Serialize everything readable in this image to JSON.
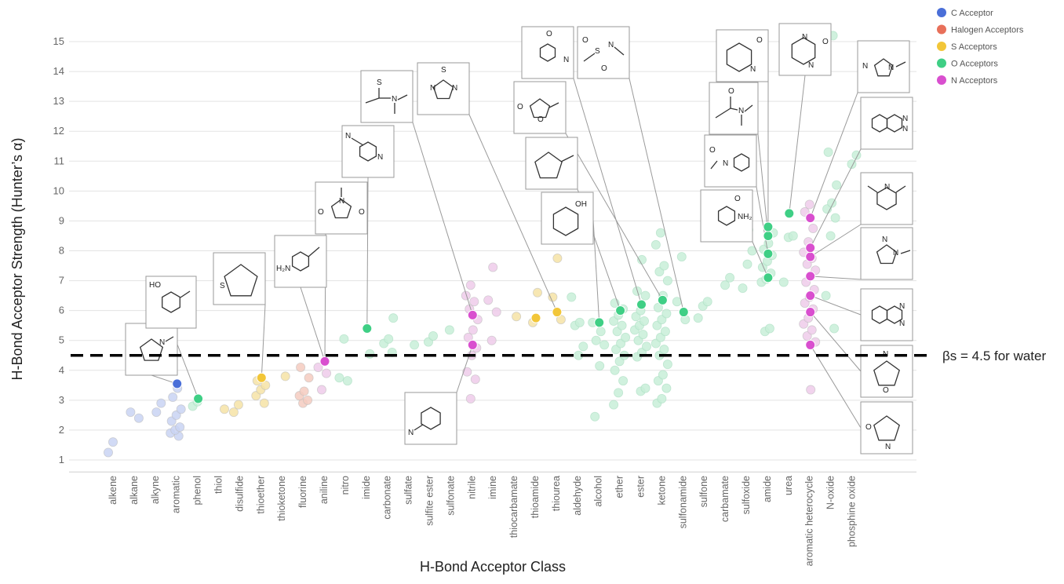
{
  "chart_data": {
    "type": "scatter",
    "title": "",
    "xlabel": "H-Bond Acceptor Class",
    "ylabel": "H-Bond Acceptor Strength (Hunter’s α)",
    "ylim": [
      0.6,
      15.6
    ],
    "yticks": [
      1,
      2,
      3,
      4,
      5,
      6,
      7,
      8,
      9,
      10,
      11,
      12,
      13,
      14,
      15
    ],
    "grid": "horizontal",
    "legend_position": "top-right",
    "categories": [
      "alkene",
      "alkane",
      "alkyne",
      "aromatic",
      "phenol",
      "thiol",
      "disulfide",
      "thioether",
      "thioketone",
      "fluorine",
      "aniline",
      "nitro",
      "imide",
      "carbonate",
      "sulfate",
      "sulfite ester",
      "sulfonate",
      "nitrile",
      "imine",
      "thiocarbamate",
      "thioamide",
      "thiourea",
      "aldehyde",
      "alcohol",
      "ether",
      "ester",
      "ketone",
      "sulfonamide",
      "sulfone",
      "carbamate",
      "sulfoxide",
      "amide",
      "urea",
      "aromatic heterocycle",
      "N-oxide",
      "phosphine oxide"
    ],
    "reference_line": {
      "y": 4.5,
      "label": "βs = 4.5 for water"
    },
    "series": [
      {
        "name": "C Acceptor",
        "color": "#4a6fd8",
        "light": "#c9d3f3",
        "points": [
          [
            "alkene",
            1.25
          ],
          [
            "alkene",
            1.6
          ],
          [
            "alkane",
            2.4
          ],
          [
            "alkane",
            2.6
          ],
          [
            "alkyne",
            2.6
          ],
          [
            "alkyne",
            2.9
          ],
          [
            "aromatic",
            1.8
          ],
          [
            "aromatic",
            1.9
          ],
          [
            "aromatic",
            2.0
          ],
          [
            "aromatic",
            2.1
          ],
          [
            "aromatic",
            2.3
          ],
          [
            "aromatic",
            2.5
          ],
          [
            "aromatic",
            2.7
          ],
          [
            "aromatic",
            3.1
          ],
          [
            "aromatic",
            3.4
          ]
        ],
        "highlighted": [
          [
            "aromatic",
            3.55
          ]
        ]
      },
      {
        "name": "Halogen Acceptors",
        "color": "#e8705a",
        "light": "#f5cbbf",
        "points": [
          [
            "fluorine",
            2.9
          ],
          [
            "fluorine",
            3.0
          ],
          [
            "fluorine",
            3.15
          ],
          [
            "fluorine",
            3.3
          ],
          [
            "fluorine",
            3.75
          ],
          [
            "fluorine",
            4.1
          ]
        ],
        "highlighted": []
      },
      {
        "name": "S Acceptors",
        "color": "#f2c638",
        "light": "#f6e3a6",
        "points": [
          [
            "thiol",
            2.7
          ],
          [
            "disulfide",
            2.6
          ],
          [
            "disulfide",
            2.85
          ],
          [
            "thioether",
            2.9
          ],
          [
            "thioether",
            3.15
          ],
          [
            "thioether",
            3.35
          ],
          [
            "thioether",
            3.5
          ],
          [
            "thioether",
            3.65
          ],
          [
            "thioketone",
            3.8
          ],
          [
            "thiocarbamate",
            5.8
          ],
          [
            "thioamide",
            5.6
          ],
          [
            "thioamide",
            6.6
          ],
          [
            "thiourea",
            5.7
          ],
          [
            "thiourea",
            6.45
          ],
          [
            "thiourea",
            7.75
          ]
        ],
        "highlighted": [
          [
            "thioether",
            3.75
          ],
          [
            "thioamide",
            5.75
          ],
          [
            "thiourea",
            5.95
          ]
        ]
      },
      {
        "name": "O Acceptors",
        "color": "#3fcf85",
        "light": "#c8eed8",
        "points": [
          [
            "phenol",
            2.8
          ],
          [
            "phenol",
            2.95
          ],
          [
            "nitro",
            3.65
          ],
          [
            "nitro",
            3.75
          ],
          [
            "nitro",
            5.05
          ],
          [
            "imide",
            4.55
          ],
          [
            "carbonate",
            4.6
          ],
          [
            "carbonate",
            4.9
          ],
          [
            "carbonate",
            5.05
          ],
          [
            "carbonate",
            5.75
          ],
          [
            "sulfate",
            4.85
          ],
          [
            "sulfite ester",
            4.95
          ],
          [
            "sulfite ester",
            5.15
          ],
          [
            "sulfonate",
            5.35
          ],
          [
            "aldehyde",
            4.5
          ],
          [
            "aldehyde",
            4.8
          ],
          [
            "aldehyde",
            5.5
          ],
          [
            "aldehyde",
            5.6
          ],
          [
            "aldehyde",
            6.45
          ],
          [
            "alcohol",
            2.45
          ],
          [
            "alcohol",
            4.15
          ],
          [
            "alcohol",
            4.85
          ],
          [
            "alcohol",
            5.0
          ],
          [
            "alcohol",
            5.3
          ],
          [
            "alcohol",
            5.6
          ],
          [
            "ether",
            2.85
          ],
          [
            "ether",
            3.25
          ],
          [
            "ether",
            3.65
          ],
          [
            "ether",
            4.0
          ],
          [
            "ether",
            4.3
          ],
          [
            "ether",
            4.5
          ],
          [
            "ether",
            4.7
          ],
          [
            "ether",
            4.9
          ],
          [
            "ether",
            5.1
          ],
          [
            "ether",
            5.3
          ],
          [
            "ether",
            5.5
          ],
          [
            "ether",
            5.65
          ],
          [
            "ether",
            5.85
          ],
          [
            "ether",
            6.05
          ],
          [
            "ether",
            6.25
          ],
          [
            "ester",
            3.3
          ],
          [
            "ester",
            3.4
          ],
          [
            "ester",
            4.45
          ],
          [
            "ester",
            4.6
          ],
          [
            "ester",
            4.8
          ],
          [
            "ester",
            5.0
          ],
          [
            "ester",
            5.2
          ],
          [
            "ester",
            5.35
          ],
          [
            "ester",
            5.5
          ],
          [
            "ester",
            5.65
          ],
          [
            "ester",
            5.8
          ],
          [
            "ester",
            6.0
          ],
          [
            "ester",
            6.5
          ],
          [
            "ester",
            6.65
          ],
          [
            "ester",
            7.7
          ],
          [
            "ketone",
            2.9
          ],
          [
            "ketone",
            3.05
          ],
          [
            "ketone",
            3.4
          ],
          [
            "ketone",
            3.65
          ],
          [
            "ketone",
            3.85
          ],
          [
            "ketone",
            4.2
          ],
          [
            "ketone",
            4.5
          ],
          [
            "ketone",
            4.7
          ],
          [
            "ketone",
            4.9
          ],
          [
            "ketone",
            5.1
          ],
          [
            "ketone",
            5.3
          ],
          [
            "ketone",
            5.5
          ],
          [
            "ketone",
            5.7
          ],
          [
            "ketone",
            5.9
          ],
          [
            "ketone",
            6.1
          ],
          [
            "ketone",
            6.5
          ],
          [
            "ketone",
            7.0
          ],
          [
            "ketone",
            7.3
          ],
          [
            "ketone",
            7.5
          ],
          [
            "ketone",
            8.2
          ],
          [
            "ketone",
            8.6
          ],
          [
            "sulfonamide",
            5.7
          ],
          [
            "sulfonamide",
            6.3
          ],
          [
            "sulfonamide",
            7.8
          ],
          [
            "sulfone",
            5.75
          ],
          [
            "sulfone",
            6.15
          ],
          [
            "sulfone",
            6.3
          ],
          [
            "carbamate",
            6.85
          ],
          [
            "carbamate",
            7.1
          ],
          [
            "sulfoxide",
            6.75
          ],
          [
            "sulfoxide",
            7.55
          ],
          [
            "sulfoxide",
            8.0
          ],
          [
            "sulfoxide",
            8.5
          ],
          [
            "sulfoxide",
            8.7
          ],
          [
            "amide",
            5.3
          ],
          [
            "amide",
            5.4
          ],
          [
            "amide",
            6.95
          ],
          [
            "amide",
            7.05
          ],
          [
            "amide",
            7.25
          ],
          [
            "amide",
            7.45
          ],
          [
            "amide",
            7.65
          ],
          [
            "amide",
            7.85
          ],
          [
            "amide",
            8.05
          ],
          [
            "amide",
            8.25
          ],
          [
            "amide",
            8.6
          ],
          [
            "urea",
            6.95
          ],
          [
            "urea",
            8.45
          ],
          [
            "urea",
            8.5
          ],
          [
            "N-oxide",
            5.4
          ],
          [
            "N-oxide",
            6.5
          ],
          [
            "N-oxide",
            8.5
          ],
          [
            "N-oxide",
            9.1
          ],
          [
            "N-oxide",
            9.4
          ],
          [
            "N-oxide",
            9.6
          ],
          [
            "N-oxide",
            10.2
          ],
          [
            "N-oxide",
            11.3
          ],
          [
            "N-oxide",
            15.2
          ],
          [
            "phosphine oxide",
            10.9
          ],
          [
            "phosphine oxide",
            11.2
          ]
        ],
        "highlighted": [
          [
            "phenol",
            3.05
          ],
          [
            "imide",
            5.4
          ],
          [
            "alcohol",
            5.6
          ],
          [
            "ether",
            6.0
          ],
          [
            "ester",
            6.2
          ],
          [
            "ketone",
            6.35
          ],
          [
            "sulfonamide",
            5.95
          ],
          [
            "amide",
            7.1
          ],
          [
            "amide",
            7.9
          ],
          [
            "amide",
            8.5
          ],
          [
            "amide",
            8.8
          ],
          [
            "urea",
            9.25
          ]
        ]
      },
      {
        "name": "N Acceptors",
        "color": "#d94fcf",
        "light": "#eecbea",
        "points": [
          [
            "aniline",
            3.35
          ],
          [
            "aniline",
            3.9
          ],
          [
            "aniline",
            4.1
          ],
          [
            "nitrile",
            3.05
          ],
          [
            "nitrile",
            3.7
          ],
          [
            "nitrile",
            3.95
          ],
          [
            "nitrile",
            4.5
          ],
          [
            "nitrile",
            4.75
          ],
          [
            "nitrile",
            5.1
          ],
          [
            "nitrile",
            5.35
          ],
          [
            "nitrile",
            5.7
          ],
          [
            "nitrile",
            6.05
          ],
          [
            "nitrile",
            6.3
          ],
          [
            "nitrile",
            6.5
          ],
          [
            "nitrile",
            6.85
          ],
          [
            "imine",
            5.0
          ],
          [
            "imine",
            5.95
          ],
          [
            "imine",
            6.35
          ],
          [
            "imine",
            7.45
          ],
          [
            "aromatic heterocycle",
            3.35
          ],
          [
            "aromatic heterocycle",
            4.95
          ],
          [
            "aromatic heterocycle",
            5.15
          ],
          [
            "aromatic heterocycle",
            5.35
          ],
          [
            "aromatic heterocycle",
            5.55
          ],
          [
            "aromatic heterocycle",
            5.75
          ],
          [
            "aromatic heterocycle",
            6.05
          ],
          [
            "aromatic heterocycle",
            6.25
          ],
          [
            "aromatic heterocycle",
            6.45
          ],
          [
            "aromatic heterocycle",
            6.7
          ],
          [
            "aromatic heterocycle",
            6.95
          ],
          [
            "aromatic heterocycle",
            7.15
          ],
          [
            "aromatic heterocycle",
            7.35
          ],
          [
            "aromatic heterocycle",
            7.55
          ],
          [
            "aromatic heterocycle",
            7.75
          ],
          [
            "aromatic heterocycle",
            7.95
          ],
          [
            "aromatic heterocycle",
            8.3
          ],
          [
            "aromatic heterocycle",
            8.75
          ],
          [
            "aromatic heterocycle",
            9.3
          ],
          [
            "aromatic heterocycle",
            9.55
          ]
        ],
        "highlighted": [
          [
            "aniline",
            4.3
          ],
          [
            "nitrile",
            4.85
          ],
          [
            "nitrile",
            5.85
          ],
          [
            "aromatic heterocycle",
            4.85
          ],
          [
            "aromatic heterocycle",
            5.95
          ],
          [
            "aromatic heterocycle",
            6.5
          ],
          [
            "aromatic heterocycle",
            7.15
          ],
          [
            "aromatic heterocycle",
            7.8
          ],
          [
            "aromatic heterocycle",
            8.1
          ],
          [
            "aromatic heterocycle",
            9.1
          ]
        ]
      }
    ],
    "structure_labels": [
      {
        "id": "phenol-struct",
        "text": "HO"
      },
      {
        "id": "aniline-struct",
        "text": "H2N"
      },
      {
        "id": "imide-struct",
        "text": "O  N  O"
      },
      {
        "id": "nitrile-struct",
        "text": "N"
      },
      {
        "id": "thioamide-struct",
        "text": "S  N"
      },
      {
        "id": "alcohol-struct",
        "text": "OH"
      },
      {
        "id": "amide-struct",
        "text": "NH2"
      }
    ]
  }
}
